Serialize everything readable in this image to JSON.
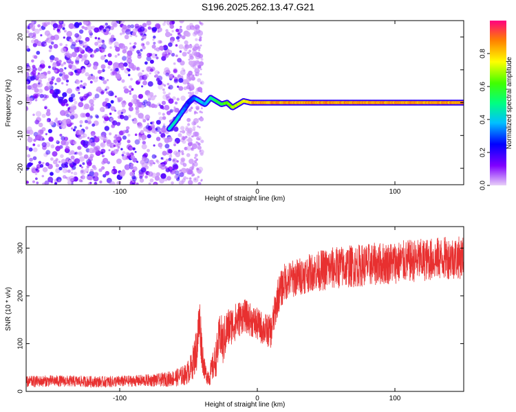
{
  "title": "S196.2025.262.13.47.G21",
  "chart_data": [
    {
      "type": "heatmap",
      "xlabel": "Height of straight line (km)",
      "ylabel": "Frequency (Hz)",
      "xlim": [
        -168,
        150
      ],
      "ylim": [
        -25,
        25
      ],
      "x_ticks": [
        -100,
        0,
        100
      ],
      "x_tick_labels": [
        "-100",
        "0",
        "100"
      ],
      "y_ticks": [
        -20,
        -10,
        0,
        10,
        20
      ],
      "y_tick_labels": [
        "-20",
        "-10",
        "0",
        "10",
        "20"
      ],
      "colorbar": {
        "label": "Normalized spectral amplitude",
        "range": [
          0,
          1
        ],
        "ticks": [
          0.0,
          0.2,
          0.4,
          0.6,
          0.8
        ],
        "tick_labels": [
          "0.0",
          "0.2",
          "0.4",
          "0.6",
          "0.8"
        ]
      },
      "ridge": {
        "x": [
          -64,
          -60,
          -55,
          -50,
          -46,
          -42,
          -38,
          -34,
          -30,
          -26,
          -22,
          -18,
          -14,
          -10,
          -5,
          0,
          20,
          60,
          100,
          150
        ],
        "freq": [
          -8,
          -6,
          -3,
          0,
          1.5,
          0.5,
          -0.5,
          1.5,
          0.5,
          -0.5,
          0,
          -1.5,
          -0.5,
          0.5,
          0,
          0,
          0,
          0,
          0,
          0
        ],
        "amplitude": [
          0.45,
          0.5,
          0.4,
          0.3,
          0.35,
          0.45,
          0.4,
          0.5,
          0.6,
          0.65,
          0.7,
          0.75,
          0.8,
          0.82,
          0.9,
          0.95,
          0.95,
          0.95,
          0.95,
          0.95
        ]
      },
      "noise_region_x": [
        -168,
        -40
      ]
    },
    {
      "type": "line",
      "xlabel": "Height of straight line (km)",
      "ylabel": "SNR (10 * v/v)",
      "xlim": [
        -168,
        150
      ],
      "ylim": [
        0,
        345
      ],
      "x_ticks": [
        -100,
        0,
        100
      ],
      "x_tick_labels": [
        "-100",
        "0",
        "100"
      ],
      "y_ticks": [
        0,
        100,
        200,
        300
      ],
      "y_tick_labels": [
        "0",
        "100",
        "200",
        "300"
      ],
      "color": "#e83030",
      "series": [
        {
          "name": "SNR",
          "x": [
            -168,
            -150,
            -130,
            -110,
            -90,
            -70,
            -60,
            -52,
            -48,
            -44,
            -42,
            -40,
            -38,
            -35,
            -30,
            -27,
            -25,
            -22,
            -18,
            -14,
            -10,
            -5,
            0,
            5,
            10,
            15,
            20,
            30,
            40,
            50,
            60,
            80,
            100,
            120,
            140,
            150
          ],
          "y": [
            20,
            22,
            21,
            20,
            22,
            24,
            28,
            35,
            50,
            90,
            150,
            80,
            40,
            30,
            70,
            120,
            100,
            130,
            140,
            150,
            160,
            150,
            140,
            130,
            125,
            200,
            230,
            240,
            250,
            255,
            260,
            265,
            270,
            275,
            280,
            280
          ],
          "noise": [
            12,
            12,
            12,
            12,
            12,
            14,
            18,
            22,
            30,
            50,
            60,
            40,
            20,
            20,
            40,
            50,
            50,
            45,
            40,
            40,
            35,
            35,
            35,
            35,
            35,
            40,
            40,
            40,
            40,
            45,
            45,
            45,
            45,
            45,
            45,
            45
          ]
        }
      ]
    }
  ]
}
